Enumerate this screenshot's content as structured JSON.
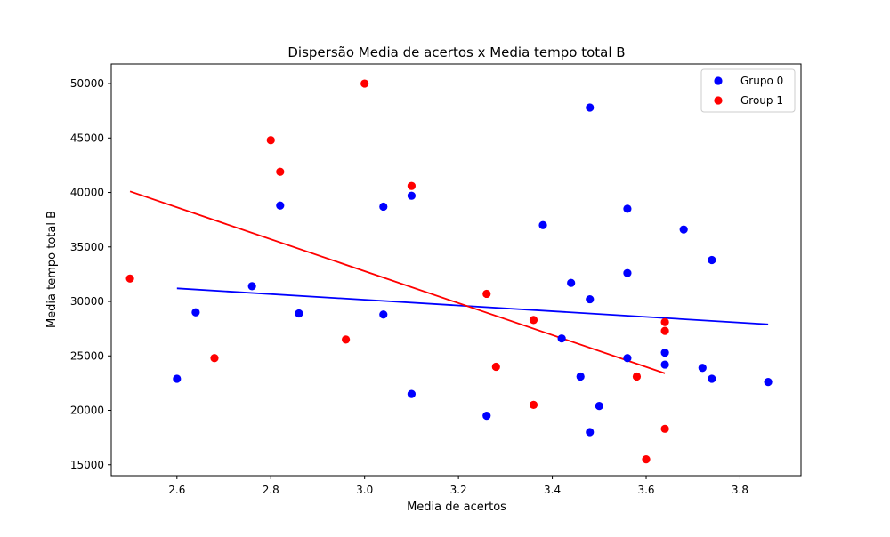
{
  "chart_data": {
    "type": "scatter",
    "title": "Dispersão Media de acertos x Media tempo total B",
    "xlabel": "Media de acertos",
    "ylabel": "Media tempo total B",
    "xlim": [
      2.46,
      3.93
    ],
    "ylim": [
      14000,
      51800
    ],
    "xticks": [
      2.6,
      2.8,
      3.0,
      3.2,
      3.4,
      3.6,
      3.8
    ],
    "xtick_labels": [
      "2.6",
      "2.8",
      "3.0",
      "3.2",
      "3.4",
      "3.6",
      "3.8"
    ],
    "yticks": [
      15000,
      20000,
      25000,
      30000,
      35000,
      40000,
      45000,
      50000
    ],
    "ytick_labels": [
      "15000",
      "20000",
      "25000",
      "30000",
      "35000",
      "40000",
      "45000",
      "50000"
    ],
    "grid": false,
    "legend_position": "top-right",
    "series": [
      {
        "name": "Grupo 0",
        "color": "#0000ff",
        "points": [
          [
            2.6,
            22900
          ],
          [
            2.64,
            29000
          ],
          [
            2.76,
            31400
          ],
          [
            2.82,
            38800
          ],
          [
            2.86,
            28900
          ],
          [
            3.04,
            38700
          ],
          [
            3.04,
            28800
          ],
          [
            3.1,
            39700
          ],
          [
            3.1,
            21500
          ],
          [
            3.26,
            19500
          ],
          [
            3.38,
            37000
          ],
          [
            3.42,
            26600
          ],
          [
            3.44,
            31700
          ],
          [
            3.46,
            23100
          ],
          [
            3.48,
            47800
          ],
          [
            3.48,
            30200
          ],
          [
            3.48,
            18000
          ],
          [
            3.5,
            20400
          ],
          [
            3.56,
            38500
          ],
          [
            3.56,
            32600
          ],
          [
            3.56,
            24800
          ],
          [
            3.64,
            25300
          ],
          [
            3.64,
            24200
          ],
          [
            3.68,
            36600
          ],
          [
            3.72,
            23900
          ],
          [
            3.74,
            33800
          ],
          [
            3.74,
            22900
          ],
          [
            3.86,
            22600
          ]
        ],
        "trendline": {
          "x": [
            2.6,
            3.86
          ],
          "y": [
            31200,
            27900
          ]
        }
      },
      {
        "name": "Group 1",
        "color": "#ff0000",
        "points": [
          [
            2.5,
            32100
          ],
          [
            2.68,
            24800
          ],
          [
            2.8,
            44800
          ],
          [
            2.82,
            41900
          ],
          [
            2.96,
            26500
          ],
          [
            3.0,
            50000
          ],
          [
            3.1,
            40600
          ],
          [
            3.26,
            30700
          ],
          [
            3.28,
            24000
          ],
          [
            3.36,
            28300
          ],
          [
            3.36,
            20500
          ],
          [
            3.58,
            23100
          ],
          [
            3.6,
            15500
          ],
          [
            3.64,
            28100
          ],
          [
            3.64,
            27300
          ],
          [
            3.64,
            18300
          ]
        ],
        "trendline": {
          "x": [
            2.5,
            3.64
          ],
          "y": [
            40100,
            23400
          ]
        }
      }
    ]
  }
}
